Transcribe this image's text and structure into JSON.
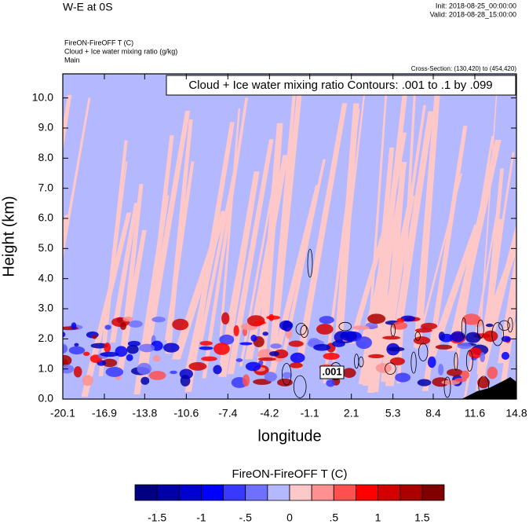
{
  "chart_data": {
    "type": "contour",
    "title": "W-E at 0S",
    "init": "Init: 2018-08-25_00:00:00",
    "valid": "Valid: 2018-08-28_15:00:00",
    "subtitles": [
      "FireON-FireOFF T   (C)",
      "Cloud + Ice water mixing ratio   (g/kg)",
      "Main"
    ],
    "cross_section": "Cross-Section: (130,420) to (454,420)",
    "annotation": "Cloud + Ice water mixing ratio Contours: .001 to .1 by .099",
    "contour_label": ".001",
    "x_label": "longitude",
    "y_label": "Height (km)",
    "xlim": [
      -20.1,
      14.8
    ],
    "xticks": [
      -20.1,
      -16.9,
      -13.8,
      -10.6,
      -7.4,
      -4.2,
      -1.1,
      2.1,
      5.3,
      8.4,
      11.6,
      14.8
    ],
    "ylim": [
      0,
      10.8
    ],
    "yticks": [
      {
        "value": 0,
        "label": "0.0"
      },
      {
        "value": 1,
        "label": "1.0"
      },
      {
        "value": 2,
        "label": "2.0"
      },
      {
        "value": 3,
        "label": "3.0"
      },
      {
        "value": 4,
        "label": "4.0"
      },
      {
        "value": 5,
        "label": "5.0"
      },
      {
        "value": 6,
        "label": "6.0"
      },
      {
        "value": 7,
        "label": "7.0"
      },
      {
        "value": 8,
        "label": "8.0"
      },
      {
        "value": 9,
        "label": "9.0"
      },
      {
        "value": 10,
        "label": "10.0"
      }
    ],
    "colorbar": {
      "title": "FireON-FireOFF T  (C)",
      "levels": [
        -1.75,
        -1.5,
        -1.25,
        -1,
        -0.75,
        -0.5,
        -0.25,
        0,
        0.25,
        0.5,
        0.75,
        1,
        1.25,
        1.5,
        1.75
      ],
      "colors": [
        "#000080",
        "#0000a8",
        "#0000d0",
        "#0000ff",
        "#3838ff",
        "#7070ff",
        "#b4b8ff",
        "#ffc8c8",
        "#ff9090",
        "#ff5050",
        "#ff0000",
        "#d40000",
        "#aa0000",
        "#800000"
      ],
      "ticks": [
        -1.5,
        -1,
        {
          "value": -0.5,
          "label": "-.5"
        },
        0,
        {
          "value": 0.5,
          "label": ".5"
        },
        1,
        1.5
      ]
    }
  }
}
